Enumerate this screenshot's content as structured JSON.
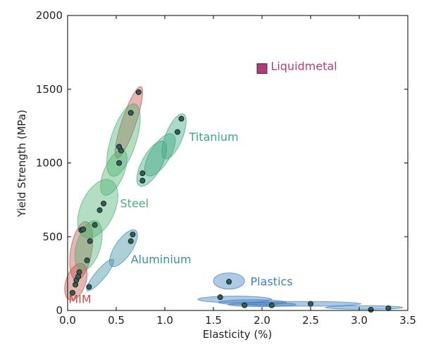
{
  "chart_data": {
    "type": "scatter",
    "title": "",
    "xlabel": "Elasticity (%)",
    "ylabel": "Yield Strength (MPa)",
    "xlim": [
      0,
      3.5
    ],
    "ylim": [
      0,
      2000
    ],
    "xticks": [
      "0.0",
      "0.5",
      "1.0",
      "1.5",
      "2.0",
      "2.5",
      "3.0",
      "3.5"
    ],
    "yticks": [
      "0",
      "500",
      "1000",
      "1500",
      "2000"
    ],
    "grid": false,
    "groups": [
      {
        "name": "MIM",
        "color": "#c0504d",
        "points": [
          [
            0.05,
            120
          ],
          [
            0.08,
            175
          ],
          [
            0.09,
            205
          ],
          [
            0.11,
            230
          ],
          [
            0.12,
            260
          ],
          [
            0.14,
            545
          ],
          [
            0.16,
            550
          ],
          [
            0.37,
            725
          ],
          [
            0.55,
            1085
          ],
          [
            0.73,
            1480
          ]
        ]
      },
      {
        "name": "Steel",
        "color": "#4cb071",
        "points": [
          [
            0.2,
            340
          ],
          [
            0.23,
            470
          ],
          [
            0.28,
            580
          ],
          [
            0.33,
            680
          ],
          [
            0.53,
            1000
          ],
          [
            0.53,
            1110
          ],
          [
            0.65,
            1340
          ]
        ]
      },
      {
        "name": "Titanium",
        "color": "#3aa87e",
        "points": [
          [
            0.77,
            880
          ],
          [
            0.77,
            930
          ],
          [
            1.13,
            1210
          ],
          [
            1.17,
            1300
          ]
        ]
      },
      {
        "name": "Aluminium",
        "color": "#3c8fa3",
        "points": [
          [
            0.22,
            160
          ],
          [
            0.65,
            470
          ],
          [
            0.67,
            515
          ]
        ]
      },
      {
        "name": "Plastics",
        "color": "#3f7fbf",
        "points": [
          [
            1.57,
            90
          ],
          [
            1.66,
            195
          ],
          [
            1.82,
            35
          ],
          [
            2.1,
            35
          ],
          [
            2.5,
            45
          ],
          [
            3.12,
            5
          ],
          [
            3.3,
            15
          ]
        ]
      },
      {
        "name": "Liquidmetal",
        "color": "#b13c7b",
        "points": [
          [
            2.0,
            1640
          ]
        ]
      }
    ]
  }
}
